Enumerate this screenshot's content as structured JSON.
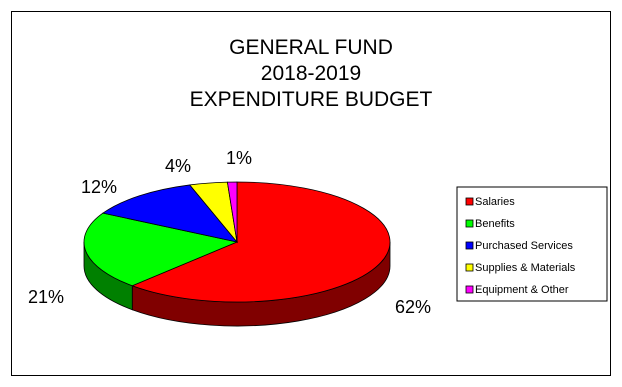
{
  "chart_data": {
    "type": "pie",
    "title_lines": [
      "GENERAL FUND",
      "2018-2019",
      "EXPENDITURE BUDGET"
    ],
    "slices": [
      {
        "name": "Salaries",
        "value": 62,
        "label": "62%",
        "color": "#ff0000",
        "side": "#800000"
      },
      {
        "name": "Benefits",
        "value": 21,
        "label": "21%",
        "color": "#00ff00",
        "side": "#008000"
      },
      {
        "name": "Purchased Services",
        "value": 12,
        "label": "12%",
        "color": "#0000ff",
        "side": "#000080"
      },
      {
        "name": "Supplies & Materials",
        "value": 4,
        "label": "4%",
        "color": "#ffff00",
        "side": "#808000"
      },
      {
        "name": "Equipment & Other",
        "value": 1,
        "label": "1%",
        "color": "#ff00ff",
        "side": "#800080"
      }
    ],
    "legend_position": "right"
  }
}
